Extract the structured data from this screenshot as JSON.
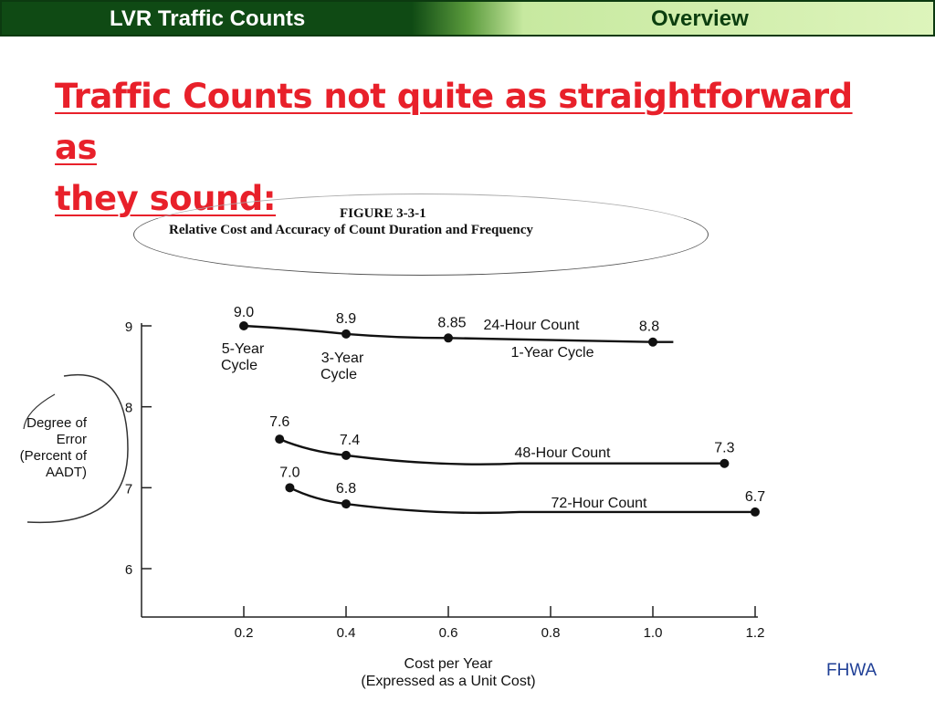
{
  "header": {
    "left_title": "LVR Traffic Counts",
    "right_title": "Overview"
  },
  "slide": {
    "title_line1": "Traffic Counts not quite as straightforward as",
    "title_line2": "they sound:",
    "source": "FHWA"
  },
  "figure": {
    "number": "FIGURE 3-3-1",
    "caption": "Relative Cost and Accuracy of Count Duration and Frequency"
  },
  "chart_data": {
    "type": "line",
    "title": "FIGURE 3-3-1 Relative Cost and Accuracy of Count Duration and Frequency",
    "xlabel_line1": "Cost per Year",
    "xlabel_line2": "(Expressed as a Unit Cost)",
    "ylabel_lines": [
      "Degree of",
      "Error",
      "(Percent of",
      "AADT)"
    ],
    "xlim": [
      0.2,
      1.2
    ],
    "ylim": [
      6,
      9
    ],
    "x_ticks": [
      0.2,
      0.4,
      0.6,
      0.8,
      1.0,
      1.2
    ],
    "x_tick_labels": [
      "0.2",
      "0.4",
      "0.6",
      "0.8",
      "1.0",
      "1.2"
    ],
    "y_ticks": [
      6,
      7,
      8,
      9
    ],
    "y_tick_labels": [
      "6",
      "7",
      "8",
      "9"
    ],
    "grid": false,
    "series": [
      {
        "name": "24-Hour Count",
        "points": [
          {
            "x": 0.2,
            "y": 9.0,
            "label": "9.0"
          },
          {
            "x": 0.4,
            "y": 8.9,
            "label": "8.9"
          },
          {
            "x": 0.6,
            "y": 8.85,
            "label": "8.85"
          },
          {
            "x": 1.0,
            "y": 8.8,
            "label": "8.8"
          }
        ],
        "line_end_x": 1.04,
        "annotations": [
          "5-Year",
          "Cycle",
          "3-Year",
          "Cycle",
          "1-Year Cycle"
        ]
      },
      {
        "name": "48-Hour Count",
        "points": [
          {
            "x": 0.27,
            "y": 7.6,
            "label": "7.6"
          },
          {
            "x": 0.4,
            "y": 7.4,
            "label": "7.4"
          },
          {
            "x": 1.14,
            "y": 7.3,
            "label": "7.3"
          }
        ]
      },
      {
        "name": "72-Hour Count",
        "points": [
          {
            "x": 0.29,
            "y": 7.0,
            "label": "7.0"
          },
          {
            "x": 0.4,
            "y": 6.8,
            "label": "6.8"
          },
          {
            "x": 1.2,
            "y": 6.7,
            "label": "6.7"
          }
        ]
      }
    ]
  }
}
